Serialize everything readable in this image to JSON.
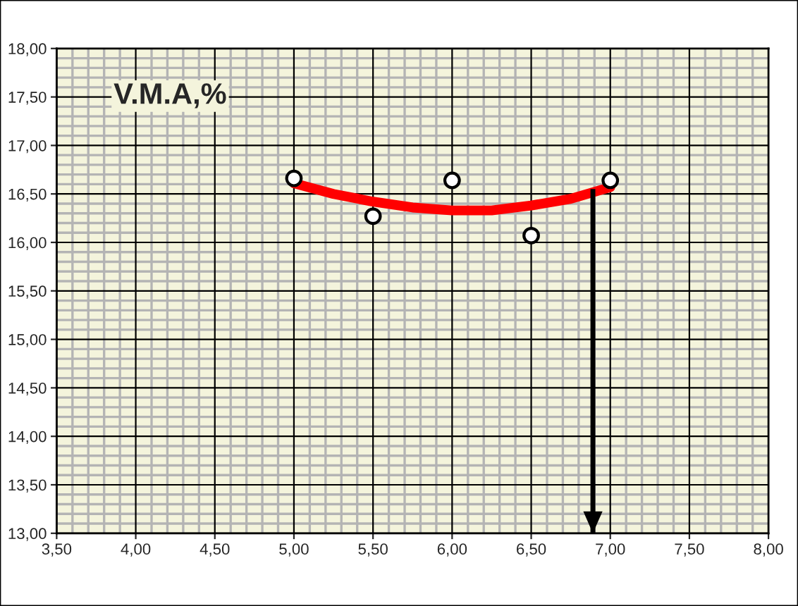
{
  "chart_data": {
    "type": "scatter",
    "annotations": [
      "V.M.A,%"
    ],
    "xlim": [
      3.5,
      8.0
    ],
    "ylim": [
      13.0,
      18.0
    ],
    "xticks": [
      {
        "value": 3.5,
        "label": "3,50"
      },
      {
        "value": 4.0,
        "label": "4,00"
      },
      {
        "value": 4.5,
        "label": "4,50"
      },
      {
        "value": 5.0,
        "label": "5,00"
      },
      {
        "value": 5.5,
        "label": "5,50"
      },
      {
        "value": 6.0,
        "label": "6,00"
      },
      {
        "value": 6.5,
        "label": "6,50"
      },
      {
        "value": 7.0,
        "label": "7,00"
      },
      {
        "value": 7.5,
        "label": "7,50"
      },
      {
        "value": 8.0,
        "label": "8,00"
      }
    ],
    "yticks": [
      {
        "value": 13.0,
        "label": "13,00"
      },
      {
        "value": 13.5,
        "label": "13,50"
      },
      {
        "value": 14.0,
        "label": "14,00"
      },
      {
        "value": 14.5,
        "label": "14,50"
      },
      {
        "value": 15.0,
        "label": "15,00"
      },
      {
        "value": 15.5,
        "label": "15,50"
      },
      {
        "value": 16.0,
        "label": "16,00"
      },
      {
        "value": 16.5,
        "label": "16,50"
      },
      {
        "value": 17.0,
        "label": "17,00"
      },
      {
        "value": 17.5,
        "label": "17,50"
      },
      {
        "value": 18.0,
        "label": "18,00"
      }
    ],
    "grid": true,
    "legend": false,
    "series": [
      {
        "type": "line",
        "color": "#ff0000",
        "x": [
          5.0,
          5.25,
          5.5,
          5.75,
          6.0,
          6.25,
          6.5,
          6.75,
          7.0
        ],
        "values": [
          16.61,
          16.5,
          16.42,
          16.36,
          16.33,
          16.33,
          16.38,
          16.45,
          16.57
        ],
        "marker": "none",
        "line_style": "solid"
      },
      {
        "color": "#000000",
        "x": [
          5.0,
          5.5,
          6.0,
          6.5,
          7.0
        ],
        "values": [
          16.66,
          16.27,
          16.64,
          16.07,
          16.64
        ],
        "marker": "circle"
      },
      {
        "type": "line",
        "color": "#000000",
        "x": [
          6.89,
          6.89
        ],
        "values": [
          16.55,
          13.0
        ],
        "marker": "none",
        "line_style": "solid"
      }
    ]
  }
}
